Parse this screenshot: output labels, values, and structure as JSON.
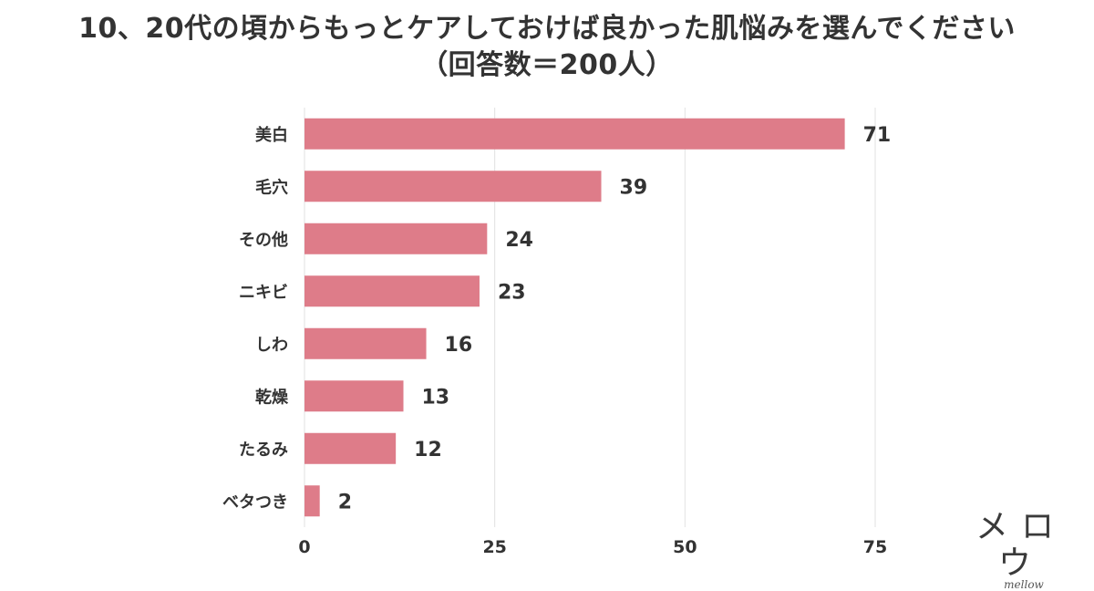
{
  "title_line1": "10、20代の頃からもっとケアしておけば良かった肌悩みを選んでください",
  "title_line2": "（回答数＝200人）",
  "logo_text": "メロウ",
  "logo_sub": "mellow",
  "colors": {
    "bar": "#de7c89",
    "title": "#333333",
    "grid": "#e2e2e2",
    "label": "#333333"
  },
  "chart_data": {
    "type": "bar",
    "orientation": "horizontal",
    "categories": [
      "美白",
      "毛穴",
      "その他",
      "ニキビ",
      "しわ",
      "乾燥",
      "たるみ",
      "ベタつき"
    ],
    "values": [
      71,
      39,
      24,
      23,
      16,
      13,
      12,
      2
    ],
    "data_labels": [
      "71",
      "39",
      "24",
      "23",
      "16",
      "13",
      "12",
      "2"
    ],
    "xlim": [
      0,
      75
    ],
    "xticks": [
      "0",
      "25",
      "50",
      "75"
    ],
    "grid": true
  }
}
